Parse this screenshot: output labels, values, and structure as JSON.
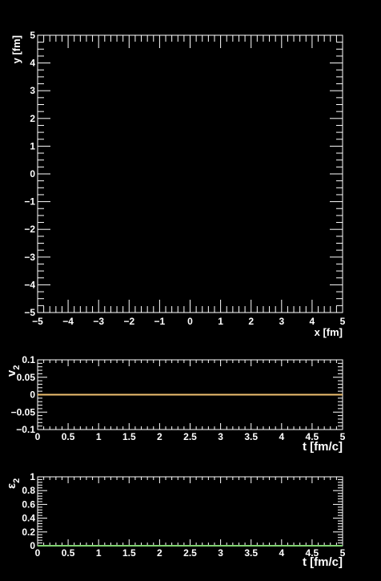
{
  "chart_data": [
    {
      "type": "scatter",
      "xlabel": "x [fm]",
      "ylabel": "y [fm]",
      "xlim": [
        -5,
        5
      ],
      "ylim": [
        -5,
        5
      ],
      "xticks": [
        "−5",
        "−4",
        "−3",
        "−2",
        "−1",
        "0",
        "1",
        "2",
        "3",
        "4",
        "5"
      ],
      "yticks": [
        "−5",
        "−4",
        "−3",
        "−2",
        "−1",
        "0",
        "1",
        "2",
        "3",
        "4",
        "5"
      ],
      "x": [],
      "y": [],
      "grid": false
    },
    {
      "type": "line",
      "xlabel": "t [fm/c]",
      "ylabel_symbol": "v",
      "ylabel_sub": "2",
      "xlim": [
        0,
        5
      ],
      "ylim": [
        -0.1,
        0.1
      ],
      "xticks": [
        "0",
        "0.5",
        "1",
        "1.5",
        "2",
        "2.5",
        "3",
        "3.5",
        "4",
        "4.5",
        "5"
      ],
      "yticks": [
        "−0.1",
        "−0.05",
        "0",
        "0.05",
        "0.1"
      ],
      "series": [
        {
          "color": "#f0c070",
          "x": [
            0,
            5
          ],
          "values": [
            0,
            0
          ]
        }
      ],
      "grid": false
    },
    {
      "type": "line",
      "xlabel": "t [fm/c]",
      "ylabel_symbol": "ε",
      "ylabel_sub": "2",
      "xlim": [
        0,
        5
      ],
      "ylim": [
        0,
        1
      ],
      "xticks": [
        "0",
        "0.5",
        "1",
        "1.5",
        "2",
        "2.5",
        "3",
        "3.5",
        "4",
        "4.5",
        "5"
      ],
      "yticks": [
        "0",
        "0.2",
        "0.4",
        "0.6",
        "0.8",
        "1"
      ],
      "series": [
        {
          "color": "#7fd070",
          "x": [
            0,
            5
          ],
          "values": [
            0,
            0
          ]
        }
      ],
      "grid": false
    }
  ],
  "colors": {
    "background": "#000000",
    "axes": "#ffffff"
  }
}
